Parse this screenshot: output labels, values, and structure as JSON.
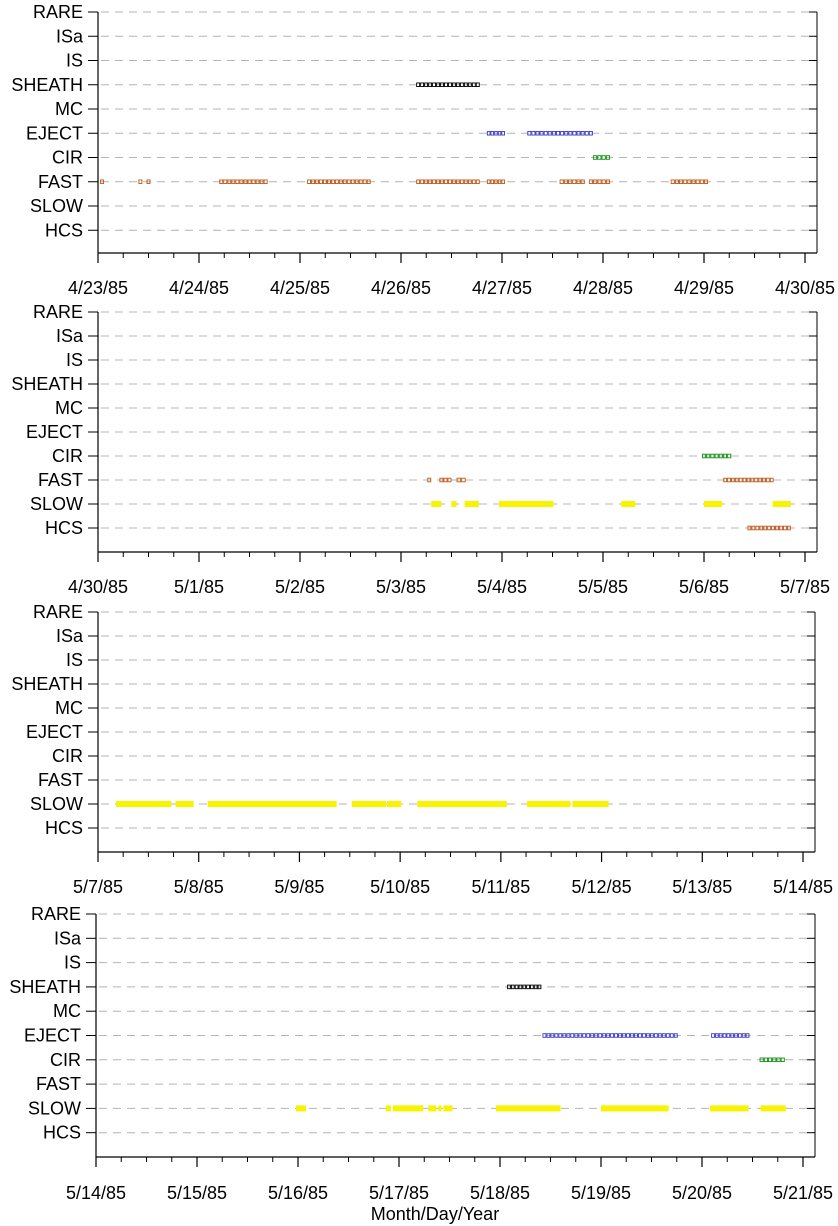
{
  "xlabel": "Month/Day/Year",
  "categories": [
    "RARE",
    "ISa",
    "IS",
    "SHEATH",
    "MC",
    "EJECT",
    "CIR",
    "FAST",
    "SLOW",
    "HCS"
  ],
  "colors": {
    "SHEATH": "#000000",
    "EJECT": "#3a3acc",
    "CIR": "#109010",
    "FAST": "#c05818",
    "HCS": "#c05818",
    "SLOW": "#f8f400"
  },
  "chart_data": [
    {
      "type": "timeline",
      "xlim": [
        "4/23/85",
        "4/30/85"
      ],
      "x_tick_labels": [
        "4/23/85",
        "4/24/85",
        "4/25/85",
        "4/26/85",
        "4/27/85",
        "4/28/85",
        "4/29/85",
        "4/30/85"
      ],
      "y_categories": [
        "RARE",
        "ISa",
        "IS",
        "SHEATH",
        "MC",
        "EJECT",
        "CIR",
        "FAST",
        "SLOW",
        "HCS"
      ],
      "grid": "dashed horizontal",
      "intervals_days": [
        {
          "cat": "SHEATH",
          "start": 3.15,
          "end": 3.78
        },
        {
          "cat": "EJECT",
          "start": 3.85,
          "end": 4.03
        },
        {
          "cat": "EJECT",
          "start": 4.25,
          "end": 4.9
        },
        {
          "cat": "CIR",
          "start": 4.9,
          "end": 5.07
        },
        {
          "cat": "FAST",
          "start": 0.02,
          "end": 0.05
        },
        {
          "cat": "FAST",
          "start": 0.4,
          "end": 0.43
        },
        {
          "cat": "FAST",
          "start": 0.48,
          "end": 0.51
        },
        {
          "cat": "FAST",
          "start": 1.2,
          "end": 1.68
        },
        {
          "cat": "FAST",
          "start": 2.07,
          "end": 2.7
        },
        {
          "cat": "FAST",
          "start": 3.15,
          "end": 3.78
        },
        {
          "cat": "FAST",
          "start": 3.85,
          "end": 4.03
        },
        {
          "cat": "FAST",
          "start": 4.57,
          "end": 4.82
        },
        {
          "cat": "FAST",
          "start": 4.86,
          "end": 5.07
        },
        {
          "cat": "FAST",
          "start": 5.67,
          "end": 6.04
        }
      ]
    },
    {
      "type": "timeline",
      "xlim": [
        "4/30/85",
        "5/7/85"
      ],
      "x_tick_labels": [
        "4/30/85",
        "5/1/85",
        "5/2/85",
        "5/3/85",
        "5/4/85",
        "5/5/85",
        "5/6/85",
        "5/7/85"
      ],
      "y_categories": [
        "RARE",
        "ISa",
        "IS",
        "SHEATH",
        "MC",
        "EJECT",
        "CIR",
        "FAST",
        "SLOW",
        "HCS"
      ],
      "grid": "dashed horizontal",
      "intervals_days": [
        {
          "cat": "CIR",
          "start": 5.98,
          "end": 6.27
        },
        {
          "cat": "FAST",
          "start": 3.26,
          "end": 3.3
        },
        {
          "cat": "FAST",
          "start": 3.38,
          "end": 3.5
        },
        {
          "cat": "FAST",
          "start": 3.55,
          "end": 3.64
        },
        {
          "cat": "FAST",
          "start": 6.19,
          "end": 6.69
        },
        {
          "cat": "SLOW",
          "start": 3.3,
          "end": 3.4
        },
        {
          "cat": "SLOW",
          "start": 3.5,
          "end": 3.55
        },
        {
          "cat": "SLOW",
          "start": 3.63,
          "end": 3.77
        },
        {
          "cat": "SLOW",
          "start": 3.97,
          "end": 4.51
        },
        {
          "cat": "SLOW",
          "start": 5.18,
          "end": 5.32
        },
        {
          "cat": "SLOW",
          "start": 6.0,
          "end": 6.18
        },
        {
          "cat": "SLOW",
          "start": 6.68,
          "end": 6.86
        },
        {
          "cat": "HCS",
          "start": 6.43,
          "end": 6.86
        }
      ]
    },
    {
      "type": "timeline",
      "xlim": [
        "5/7/85",
        "5/14/85"
      ],
      "x_tick_labels": [
        "5/7/85",
        "5/8/85",
        "5/9/85",
        "5/10/85",
        "5/11/85",
        "5/12/85",
        "5/13/85",
        "5/14/85"
      ],
      "y_categories": [
        "RARE",
        "ISa",
        "IS",
        "SHEATH",
        "MC",
        "EJECT",
        "CIR",
        "FAST",
        "SLOW",
        "HCS"
      ],
      "grid": "dashed horizontal",
      "intervals_days": [
        {
          "cat": "SLOW",
          "start": 0.18,
          "end": 0.73
        },
        {
          "cat": "SLOW",
          "start": 0.77,
          "end": 0.95
        },
        {
          "cat": "SLOW",
          "start": 1.09,
          "end": 2.37
        },
        {
          "cat": "SLOW",
          "start": 2.52,
          "end": 2.86
        },
        {
          "cat": "SLOW",
          "start": 2.87,
          "end": 3.01
        },
        {
          "cat": "SLOW",
          "start": 3.17,
          "end": 4.06
        },
        {
          "cat": "SLOW",
          "start": 4.26,
          "end": 4.69
        },
        {
          "cat": "SLOW",
          "start": 4.71,
          "end": 5.07
        }
      ]
    },
    {
      "type": "timeline",
      "xlim": [
        "5/14/85",
        "5/21/85"
      ],
      "x_tick_labels": [
        "5/14/85",
        "5/15/85",
        "5/16/85",
        "5/17/85",
        "5/18/85",
        "5/19/85",
        "5/20/85",
        "5/21/85"
      ],
      "y_categories": [
        "RARE",
        "ISa",
        "IS",
        "SHEATH",
        "MC",
        "EJECT",
        "CIR",
        "FAST",
        "SLOW",
        "HCS"
      ],
      "grid": "dashed horizontal",
      "intervals_days": [
        {
          "cat": "SHEATH",
          "start": 4.07,
          "end": 4.41
        },
        {
          "cat": "EJECT",
          "start": 4.42,
          "end": 5.76
        },
        {
          "cat": "EJECT",
          "start": 6.09,
          "end": 6.47
        },
        {
          "cat": "CIR",
          "start": 6.57,
          "end": 6.82
        },
        {
          "cat": "SLOW",
          "start": 1.98,
          "end": 2.08
        },
        {
          "cat": "SLOW",
          "start": 2.87,
          "end": 2.92
        },
        {
          "cat": "SLOW",
          "start": 2.94,
          "end": 3.24
        },
        {
          "cat": "SLOW",
          "start": 3.29,
          "end": 3.37
        },
        {
          "cat": "SLOW",
          "start": 3.39,
          "end": 3.42
        },
        {
          "cat": "SLOW",
          "start": 3.44,
          "end": 3.53
        },
        {
          "cat": "SLOW",
          "start": 3.96,
          "end": 4.6
        },
        {
          "cat": "SLOW",
          "start": 5.0,
          "end": 5.67
        },
        {
          "cat": "SLOW",
          "start": 6.08,
          "end": 6.46
        },
        {
          "cat": "SLOW",
          "start": 6.58,
          "end": 6.83
        }
      ]
    }
  ]
}
